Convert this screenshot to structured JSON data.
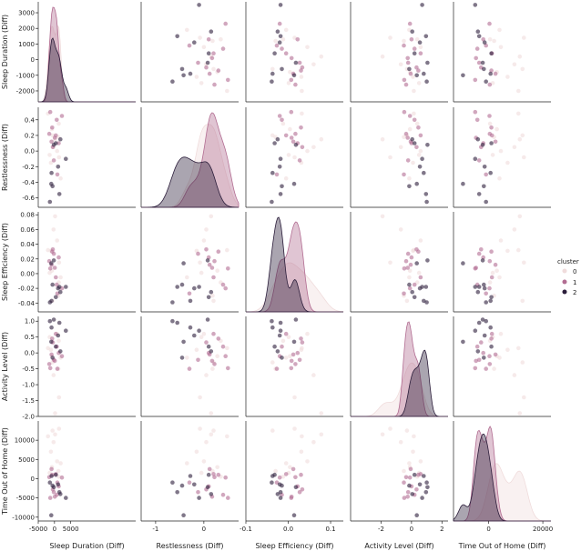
{
  "chart_data": {
    "type": "pairplot",
    "hue": "cluster",
    "legend_title": "cluster",
    "legend_position": "right",
    "clusters": [
      {
        "name": "0",
        "color": "#f0dcdc"
      },
      {
        "name": "1",
        "color": "#b26d92"
      },
      {
        "name": "2",
        "color": "#2b1d3a"
      }
    ],
    "variables": [
      {
        "name": "sleep_duration",
        "label": "Sleep Duration (Diff)",
        "range": [
          -5000,
          25000
        ],
        "yrange": [
          -2700,
          3700
        ],
        "xticks": [
          "-5000",
          "0",
          "5000"
        ],
        "xtick_values": [
          -5000,
          0,
          5000
        ],
        "yticks": [
          "-2000",
          "-1000",
          "0",
          "1000",
          "2000",
          "3000"
        ],
        "ytick_values": [
          -2000,
          -1000,
          0,
          1000,
          2000,
          3000
        ]
      },
      {
        "name": "restlessness",
        "label": "Restlessness (Diff)",
        "range": [
          -1.3,
          0.72
        ],
        "yrange": [
          -0.72,
          0.56
        ],
        "xticks": [
          "-1",
          "0"
        ],
        "xtick_values": [
          -1,
          0
        ],
        "yticks": [
          "-0.6",
          "-0.4",
          "-0.2",
          "0.0",
          "0.2",
          "0.4"
        ],
        "ytick_values": [
          -0.6,
          -0.4,
          -0.2,
          0,
          0.2,
          0.4
        ]
      },
      {
        "name": "sleep_efficiency",
        "label": "Sleep Efficiency (Diff)",
        "range": [
          -0.1,
          0.13
        ],
        "yrange": [
          -0.052,
          0.084
        ],
        "xticks": [
          "-0.1",
          "0.0",
          "0.1"
        ],
        "xtick_values": [
          -0.1,
          0,
          0.1
        ],
        "yticks": [
          "-0.04",
          "-0.02",
          "0.00",
          "0.02",
          "0.04",
          "0.06",
          "0.08"
        ],
        "ytick_values": [
          -0.04,
          -0.02,
          0,
          0.02,
          0.04,
          0.06,
          0.08
        ]
      },
      {
        "name": "activity_level",
        "label": "Activity Level (Diff)",
        "range": [
          -4,
          2.4
        ],
        "yrange": [
          -2.0,
          1.15
        ],
        "xticks": [
          "-2",
          "0",
          "2"
        ],
        "xtick_values": [
          -2,
          0,
          2
        ],
        "yticks": [
          "-2.0",
          "-1.5",
          "-1.0",
          "-0.5",
          "0.0",
          "0.5",
          "1.0"
        ],
        "ytick_values": [
          -2,
          -1.5,
          -1,
          -0.5,
          0,
          0.5,
          1
        ]
      },
      {
        "name": "time_out_of_home",
        "label": "Time Out of Home (Diff)",
        "range": [
          -13000,
          23000
        ],
        "yrange": [
          -11000,
          15000
        ],
        "xticks": [
          "0",
          "20000"
        ],
        "xtick_values": [
          0,
          20000
        ],
        "yticks": [
          "-10000",
          "-5000",
          "0",
          "5000",
          "10000"
        ],
        "ytick_values": [
          -10000,
          -5000,
          0,
          5000,
          10000
        ]
      }
    ],
    "points": [
      {
        "cluster": 0,
        "values": [
          200,
          0.15,
          0.078,
          -1.9,
          11500
        ]
      },
      {
        "cluster": 0,
        "values": [
          1400,
          -0.08,
          0.015,
          -1.4,
          13000
        ]
      },
      {
        "cluster": 0,
        "values": [
          -300,
          0.05,
          0.06,
          -0.7,
          9500
        ]
      },
      {
        "cluster": 0,
        "values": [
          1900,
          -0.35,
          -0.005,
          -0.15,
          4000
        ]
      },
      {
        "cluster": 0,
        "values": [
          -1100,
          -0.15,
          0.031,
          0.1,
          7000
        ]
      },
      {
        "cluster": 0,
        "values": [
          1200,
          0.18,
          -0.03,
          -0.5,
          2000
        ]
      },
      {
        "cluster": 0,
        "values": [
          -2000,
          0.48,
          0.032,
          0.15,
          11000
        ]
      },
      {
        "cluster": 0,
        "values": [
          -600,
          0.2,
          -0.037,
          -0.3,
          12500
        ]
      },
      {
        "cluster": 0,
        "values": [
          -1500,
          -0.05,
          0.001,
          0.5,
          1500
        ]
      },
      {
        "cluster": 0,
        "values": [
          1300,
          0.35,
          -0.012,
          0.38,
          500
        ]
      },
      {
        "cluster": 0,
        "values": [
          800,
          0.0,
          0.045,
          0.6,
          4500
        ]
      },
      {
        "cluster": 0,
        "values": [
          -800,
          0.28,
          0.004,
          -0.1,
          3000
        ]
      },
      {
        "cluster": 1,
        "values": [
          -700,
          0.3,
          0.03,
          0.45,
          1000
        ]
      },
      {
        "cluster": 1,
        "values": [
          -1300,
          0.5,
          0.007,
          -0.48,
          -5000
        ]
      },
      {
        "cluster": 1,
        "values": [
          1300,
          0.1,
          0.022,
          0.0,
          -2000
        ]
      },
      {
        "cluster": 1,
        "values": [
          400,
          0.2,
          -0.005,
          0.6,
          1200
        ]
      },
      {
        "cluster": 1,
        "values": [
          -200,
          -0.12,
          0.027,
          -0.22,
          -3500
        ]
      },
      {
        "cluster": 1,
        "values": [
          -900,
          0.12,
          0.012,
          -0.05,
          2500
        ]
      },
      {
        "cluster": 1,
        "values": [
          700,
          0.4,
          -0.015,
          0.2,
          -4200
        ]
      },
      {
        "cluster": 1,
        "values": [
          -1600,
          0.22,
          0.017,
          -0.35,
          400
        ]
      },
      {
        "cluster": 1,
        "values": [
          900,
          -0.3,
          -0.027,
          -0.5,
          -1000
        ]
      },
      {
        "cluster": 1,
        "values": [
          -500,
          0.05,
          0.033,
          0.33,
          -2800
        ]
      },
      {
        "cluster": 1,
        "values": [
          2300,
          0.45,
          -0.02,
          -0.1,
          300
        ]
      },
      {
        "cluster": 1,
        "values": [
          100,
          0.17,
          0.008,
          -0.25,
          -4700
        ]
      },
      {
        "cluster": 2,
        "values": [
          3500,
          -0.1,
          -0.018,
          0.7,
          -5000
        ]
      },
      {
        "cluster": 2,
        "values": [
          -1400,
          -0.65,
          -0.039,
          1.0,
          -1000
        ]
      },
      {
        "cluster": 2,
        "values": [
          1500,
          -0.55,
          -0.018,
          0.95,
          -3500
        ]
      },
      {
        "cluster": 2,
        "values": [
          -1000,
          -0.42,
          0.014,
          0.35,
          -9500
        ]
      },
      {
        "cluster": 2,
        "values": [
          400,
          0.1,
          -0.032,
          0.2,
          1000
        ]
      },
      {
        "cluster": 2,
        "values": [
          1100,
          -0.2,
          -0.02,
          0.55,
          -1500
        ]
      },
      {
        "cluster": 2,
        "values": [
          -200,
          0.08,
          0.018,
          1.05,
          -2200
        ]
      },
      {
        "cluster": 2,
        "values": [
          -900,
          -0.28,
          -0.037,
          0.8,
          700
        ]
      },
      {
        "cluster": 2,
        "values": [
          1800,
          0.15,
          -0.025,
          0.05,
          -4000
        ]
      },
      {
        "cluster": 2,
        "values": [
          -600,
          -0.45,
          -0.015,
          -0.15,
          -1800
        ]
      }
    ]
  }
}
